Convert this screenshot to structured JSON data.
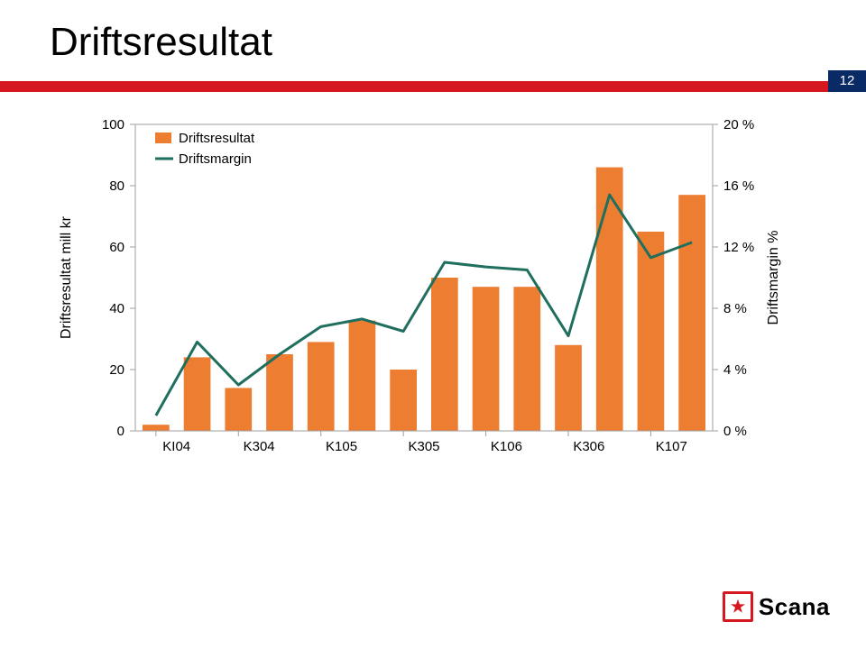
{
  "page": {
    "title": "Driftsresultat",
    "number": "12"
  },
  "brand": {
    "name": "Scana",
    "red": "#d7171f",
    "star_color": "#d7171f",
    "text_color": "#000000"
  },
  "chart": {
    "type": "combo-bar-line",
    "background_color": "#ffffff",
    "plot_border_color": "#9e9e9e",
    "plot_border_width": 1,
    "grid_color": "#9e9e9e",
    "grid_width": 1,
    "font_family": "Arial",
    "legend": {
      "position": "top-left",
      "items": [
        {
          "label": "Driftsresultat",
          "type": "bar",
          "color": "#ed7d31"
        },
        {
          "label": "Driftsmargin",
          "type": "line",
          "color": "#1f6e5e"
        }
      ],
      "fontsize": 15
    },
    "categories_visible": [
      "KI04",
      "K304",
      "K105",
      "K305",
      "K106",
      "K306",
      "K107"
    ],
    "bars": {
      "color": "#ed7d31",
      "width_ratio": 0.65,
      "values": [
        2,
        24,
        14,
        25,
        29,
        36,
        20,
        50,
        47,
        47,
        28,
        86,
        65,
        77
      ],
      "yaxis": {
        "title": "Driftsresultat mill kr",
        "title_fontsize": 16,
        "min": 0,
        "max": 100,
        "tick_step": 20,
        "tick_labels": [
          "0",
          "20",
          "40",
          "60",
          "80",
          "100"
        ],
        "label_fontsize": 15
      }
    },
    "line": {
      "color": "#1f6e5e",
      "width": 3,
      "values": [
        1.0,
        5.8,
        3.0,
        5.0,
        6.8,
        7.3,
        6.5,
        11.0,
        10.7,
        10.5,
        6.2,
        15.4,
        11.3,
        12.3
      ],
      "yaxis": {
        "title": "Driftsmargin %",
        "title_fontsize": 16,
        "min": 0,
        "max": 20,
        "tick_step": 4,
        "tick_labels": [
          "0 %",
          "4 %",
          "8 %",
          "12 %",
          "16 %",
          "20 %"
        ],
        "label_fontsize": 15
      }
    },
    "xaxis": {
      "label_fontsize": 15,
      "category_tick_positions": [
        0,
        2,
        4,
        6,
        8,
        10,
        12
      ]
    }
  }
}
